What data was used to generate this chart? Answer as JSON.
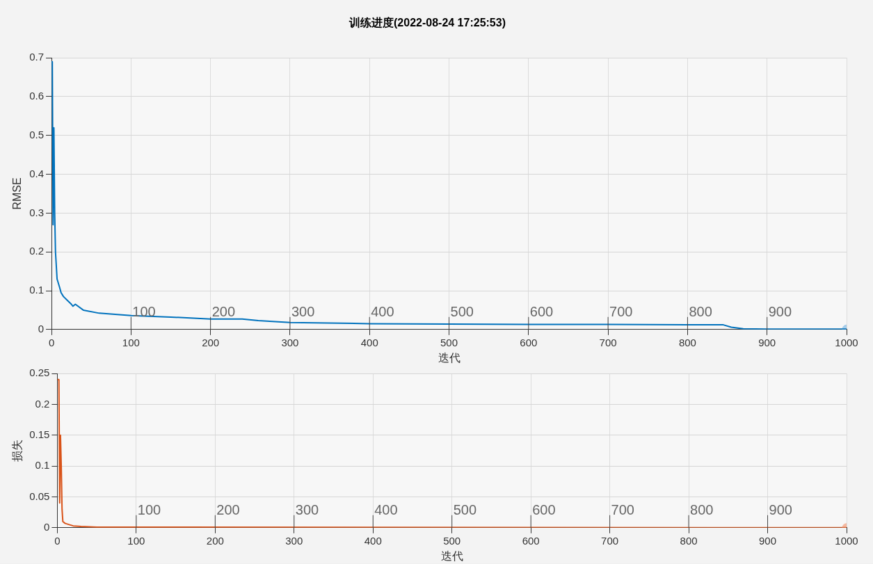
{
  "chart_data": [
    {
      "type": "line",
      "title": "训练进度(2022-08-24 17:25:53)",
      "xlabel": "迭代",
      "ylabel": "RMSE",
      "xlim": [
        0,
        1000
      ],
      "xticks": [
        0,
        100,
        200,
        300,
        400,
        500,
        600,
        700,
        800,
        900,
        1000
      ],
      "ylim": [
        0,
        0.7
      ],
      "yticks": [
        0,
        0.1,
        0.2,
        0.3,
        0.4,
        0.5,
        0.6,
        0.7
      ],
      "grid": true,
      "marker": "none",
      "series": [
        {
          "color": "#0072bd",
          "x": [
            0,
            1,
            2,
            3,
            4,
            5,
            7,
            10,
            12,
            15,
            20,
            25,
            27,
            30,
            40,
            60,
            100,
            150,
            200,
            240,
            260,
            300,
            400,
            500,
            600,
            700,
            800,
            845,
            855,
            870,
            900,
            1000
          ],
          "values": [
            0.69,
            0.69,
            0.27,
            0.52,
            0.3,
            0.2,
            0.13,
            0.11,
            0.095,
            0.085,
            0.075,
            0.065,
            0.06,
            0.065,
            0.05,
            0.042,
            0.036,
            0.032,
            0.027,
            0.027,
            0.023,
            0.018,
            0.015,
            0.014,
            0.013,
            0.013,
            0.012,
            0.012,
            0.006,
            0.002,
            0.001,
            0.001
          ]
        },
        {
          "type": "scatter",
          "color": "#a6cdea",
          "marker": "circle",
          "x": [
            1000
          ],
          "values": [
            0.001
          ]
        }
      ],
      "ref_lines": [
        {
          "axis": "x",
          "value": 100,
          "label": "100"
        },
        {
          "axis": "x",
          "value": 200,
          "label": "200"
        },
        {
          "axis": "x",
          "value": 300,
          "label": "300"
        },
        {
          "axis": "x",
          "value": 400,
          "label": "400"
        },
        {
          "axis": "x",
          "value": 500,
          "label": "500"
        },
        {
          "axis": "x",
          "value": 600,
          "label": "600"
        },
        {
          "axis": "x",
          "value": 700,
          "label": "700"
        },
        {
          "axis": "x",
          "value": 800,
          "label": "800"
        },
        {
          "axis": "x",
          "value": 900,
          "label": "900"
        }
      ]
    },
    {
      "type": "line",
      "xlabel": "迭代",
      "ylabel": "损失",
      "xlim": [
        0,
        1000
      ],
      "xticks": [
        0,
        100,
        200,
        300,
        400,
        500,
        600,
        700,
        800,
        900,
        1000
      ],
      "ylim": [
        0,
        0.25
      ],
      "yticks": [
        0,
        0.05,
        0.1,
        0.15,
        0.2,
        0.25
      ],
      "grid": true,
      "marker": "none",
      "series": [
        {
          "color": "#d95319",
          "x": [
            0,
            2,
            3,
            4,
            5,
            6,
            7,
            10,
            15,
            20,
            30,
            50,
            100,
            1000
          ],
          "values": [
            0.24,
            0.24,
            0.04,
            0.15,
            0.1,
            0.03,
            0.01,
            0.007,
            0.005,
            0.003,
            0.002,
            0.001,
            0.001,
            0
          ]
        },
        {
          "type": "scatter",
          "color": "#f4b9a0",
          "marker": "circle",
          "x": [
            1000
          ],
          "values": [
            0
          ]
        }
      ],
      "ref_lines": [
        {
          "axis": "x",
          "value": 100,
          "label": "100"
        },
        {
          "axis": "x",
          "value": 200,
          "label": "200"
        },
        {
          "axis": "x",
          "value": 300,
          "label": "300"
        },
        {
          "axis": "x",
          "value": 400,
          "label": "400"
        },
        {
          "axis": "x",
          "value": 500,
          "label": "500"
        },
        {
          "axis": "x",
          "value": 600,
          "label": "600"
        },
        {
          "axis": "x",
          "value": 700,
          "label": "700"
        },
        {
          "axis": "x",
          "value": 800,
          "label": "800"
        },
        {
          "axis": "x",
          "value": 900,
          "label": "900"
        }
      ]
    }
  ]
}
